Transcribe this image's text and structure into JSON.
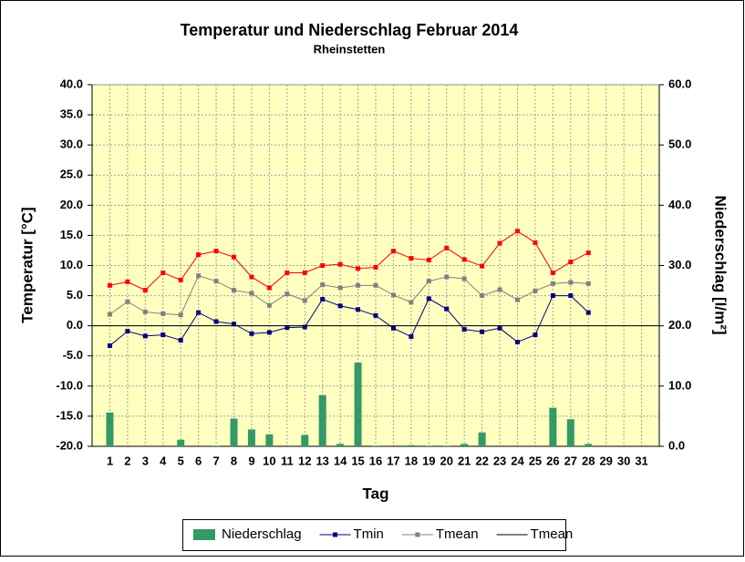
{
  "chart_data": {
    "type": "bar_line",
    "title": "Temperatur und Niederschlag Februar 2014",
    "subtitle": "Rheinstetten",
    "x_label": "Tag",
    "y_label": "Temperatur [°C]",
    "y2_label": "Niederschlag [l/m²]",
    "categories": [
      "1",
      "2",
      "3",
      "4",
      "5",
      "6",
      "7",
      "8",
      "9",
      "10",
      "11",
      "12",
      "13",
      "14",
      "15",
      "16",
      "17",
      "18",
      "19",
      "20",
      "21",
      "22",
      "23",
      "24",
      "25",
      "26",
      "27",
      "28",
      "29",
      "30",
      "31"
    ],
    "ylim": [
      -20,
      40
    ],
    "yticks": [
      {
        "value": -20,
        "label": "-20.0"
      },
      {
        "value": -15,
        "label": "-15.0"
      },
      {
        "value": -10,
        "label": "-10.0"
      },
      {
        "value": -5,
        "label": "-5.0"
      },
      {
        "value": 0,
        "label": "0.0"
      },
      {
        "value": 5,
        "label": "5.0"
      },
      {
        "value": 10,
        "label": "10.0"
      },
      {
        "value": 15,
        "label": "15.0"
      },
      {
        "value": 20,
        "label": "20.0"
      },
      {
        "value": 25,
        "label": "25.0"
      },
      {
        "value": 30,
        "label": "30.0"
      },
      {
        "value": 35,
        "label": "35.0"
      },
      {
        "value": 40,
        "label": "40.0"
      }
    ],
    "y2lim": [
      0,
      60
    ],
    "y2ticks": [
      {
        "value": 0,
        "label": "0.0"
      },
      {
        "value": 10,
        "label": "10.0"
      },
      {
        "value": 20,
        "label": "20.0"
      },
      {
        "value": 30,
        "label": "30.0"
      },
      {
        "value": 40,
        "label": "40.0"
      },
      {
        "value": 50,
        "label": "50.0"
      },
      {
        "value": 60,
        "label": "60.0"
      }
    ],
    "grid": true,
    "legend": "bottom",
    "series": [
      {
        "name": "Niederschlag",
        "kind": "bar",
        "axis": "y2",
        "color": "#339966",
        "values": [
          5.6,
          0,
          0,
          0,
          1.1,
          0,
          0.1,
          4.6,
          2.8,
          2.0,
          0,
          1.9,
          8.5,
          0.4,
          13.9,
          0.1,
          0,
          0.2,
          0.1,
          0.1,
          0.4,
          2.3,
          0,
          0,
          0,
          6.4,
          4.5,
          0.4,
          null,
          null,
          null
        ]
      },
      {
        "name": "Tmin",
        "kind": "line",
        "color": "#000080",
        "values": [
          -3.3,
          -0.9,
          -1.7,
          -1.5,
          -2.4,
          2.2,
          0.7,
          0.3,
          -1.3,
          -1.1,
          -0.3,
          -0.2,
          4.4,
          3.3,
          2.7,
          1.7,
          -0.4,
          -1.8,
          4.5,
          2.8,
          -0.6,
          -1.0,
          -0.4,
          -2.7,
          -1.5,
          5.0,
          5.0,
          2.2,
          null,
          null,
          null
        ]
      },
      {
        "name": "Tmean",
        "kind": "line",
        "color": "#808080",
        "values": [
          1.9,
          4.0,
          2.3,
          2.0,
          1.8,
          8.3,
          7.4,
          5.9,
          5.4,
          3.4,
          5.3,
          4.2,
          6.8,
          6.3,
          6.7,
          6.7,
          5.1,
          3.9,
          7.4,
          8.1,
          7.8,
          5.0,
          6.0,
          4.3,
          5.8,
          7.0,
          7.2,
          7.0,
          null,
          null,
          null
        ]
      },
      {
        "kind": "line",
        "color": "#ff0000",
        "values": [
          6.7,
          7.3,
          5.9,
          8.8,
          7.6,
          11.8,
          12.4,
          11.4,
          8.1,
          6.3,
          8.8,
          8.8,
          10.0,
          10.2,
          9.5,
          9.7,
          12.4,
          11.2,
          10.9,
          12.9,
          11.0,
          9.9,
          13.7,
          15.7,
          13.8,
          8.8,
          10.6,
          12.1,
          null,
          null,
          null
        ]
      }
    ],
    "zero_line": {
      "name": "Tmean",
      "value": 0,
      "color": "#000000"
    }
  }
}
